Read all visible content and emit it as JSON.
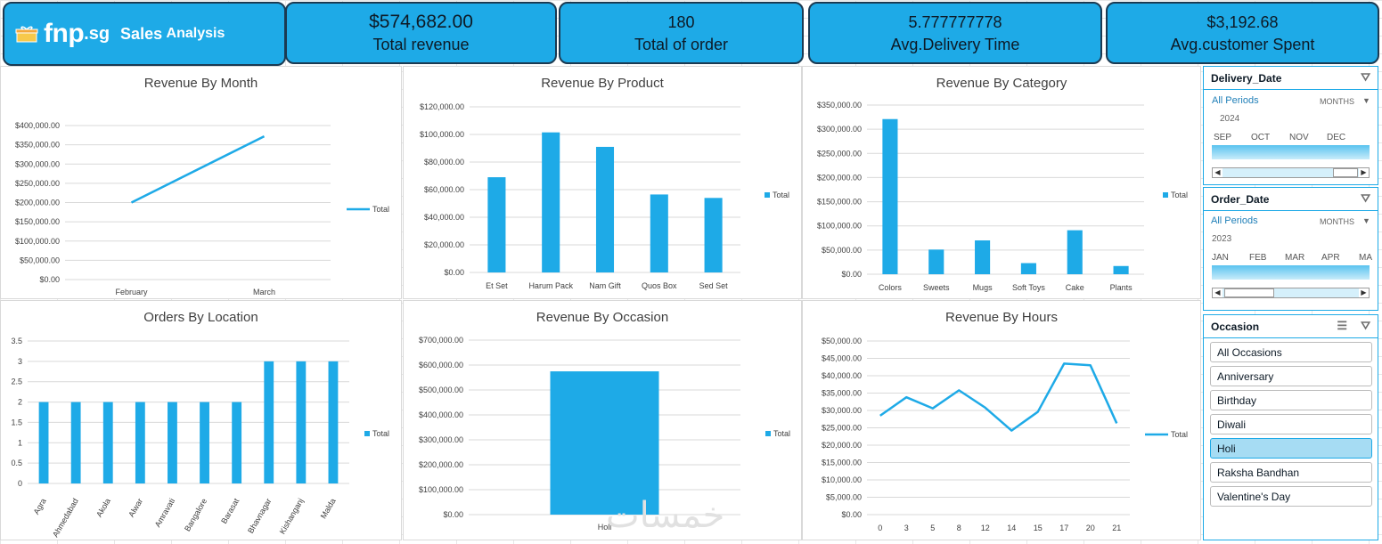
{
  "header": {
    "brand": "fnp",
    "brand_suffix": ".sg",
    "title_part1": "Sales",
    "title_part2": "Analysis",
    "logo_icon": "gift-box-icon"
  },
  "kpis": [
    {
      "value": "$574,682.00",
      "label": "Total revenue"
    },
    {
      "value": "180",
      "label": "Total of order"
    },
    {
      "value": "5.777777778",
      "label": "Avg.Delivery Time"
    },
    {
      "value": "$3,192.68",
      "label": "Avg.customer Spent"
    }
  ],
  "colors": {
    "accent": "#1eaae7",
    "border": "#1b3a52",
    "bar": "#1eaae7",
    "selected": "#a6dcf3"
  },
  "chart_data": [
    {
      "id": "month",
      "type": "line",
      "title": "Revenue By Month",
      "categories": [
        "February",
        "March"
      ],
      "values": [
        200000,
        372000
      ],
      "ylim": [
        0,
        400000
      ],
      "yticks": [
        "$0.00",
        "$50,000.00",
        "$100,000.00",
        "$150,000.00",
        "$200,000.00",
        "$250,000.00",
        "$300,000.00",
        "$350,000.00",
        "$400,000.00"
      ],
      "legend": "Total",
      "legend_position": "right"
    },
    {
      "id": "product",
      "type": "bar",
      "title": "Revenue By Product",
      "categories": [
        "Et Set",
        "Harum Pack",
        "Nam Gift",
        "Quos Box",
        "Sed Set"
      ],
      "values": [
        69000,
        101500,
        91000,
        56500,
        54000
      ],
      "ylim": [
        0,
        120000
      ],
      "yticks": [
        "$0.00",
        "$20,000.00",
        "$40,000.00",
        "$60,000.00",
        "$80,000.00",
        "$100,000.00",
        "$120,000.00"
      ],
      "legend": "Total",
      "legend_position": "right"
    },
    {
      "id": "category",
      "type": "bar",
      "title": "Revenue By Category",
      "categories": [
        "Colors",
        "Sweets",
        "Mugs",
        "Soft Toys",
        "Cake",
        "Plants"
      ],
      "values": [
        321000,
        51000,
        70000,
        23000,
        91000,
        17000
      ],
      "ylim": [
        0,
        350000
      ],
      "yticks": [
        "$0.00",
        "$50,000.00",
        "$100,000.00",
        "$150,000.00",
        "$200,000.00",
        "$250,000.00",
        "$300,000.00",
        "$350,000.00"
      ],
      "legend": "Total",
      "legend_position": "right"
    },
    {
      "id": "location",
      "type": "bar",
      "title": "Orders By Location",
      "categories": [
        "Agra",
        "Ahmedabad",
        "Akola",
        "Alwar",
        "Amravati",
        "Bangalore",
        "Barasat",
        "Bhavnagar",
        "Kishanganj",
        "Malda"
      ],
      "values": [
        2,
        2,
        2,
        2,
        2,
        2,
        2,
        3,
        3,
        3
      ],
      "ylim": [
        0,
        3.5
      ],
      "yticks": [
        "0",
        "0.5",
        "1",
        "1.5",
        "2",
        "2.5",
        "3",
        "3.5"
      ],
      "legend": "Total",
      "legend_position": "right"
    },
    {
      "id": "occasion",
      "type": "bar",
      "title": "Revenue By Occasion",
      "categories": [
        "Holi"
      ],
      "values": [
        574682
      ],
      "ylim": [
        0,
        700000
      ],
      "yticks": [
        "$0.00",
        "$100,000.00",
        "$200,000.00",
        "$300,000.00",
        "$400,000.00",
        "$500,000.00",
        "$600,000.00",
        "$700,000.00"
      ],
      "legend": "Total",
      "legend_position": "right"
    },
    {
      "id": "hours",
      "type": "line",
      "title": "Revenue By Hours",
      "categories": [
        "0",
        "3",
        "5",
        "8",
        "12",
        "14",
        "15",
        "17",
        "20",
        "21"
      ],
      "values": [
        28500,
        33800,
        30600,
        35800,
        30800,
        24200,
        29600,
        43500,
        43000,
        26300
      ],
      "ylim": [
        0,
        50000
      ],
      "yticks": [
        "$0.00",
        "$5,000.00",
        "$10,000.00",
        "$15,000.00",
        "$20,000.00",
        "$25,000.00",
        "$30,000.00",
        "$35,000.00",
        "$40,000.00",
        "$45,000.00",
        "$50,000.00"
      ],
      "legend": "Total",
      "legend_position": "right"
    }
  ],
  "slicers": {
    "delivery": {
      "title": "Delivery_Date",
      "periods": "All Periods",
      "unit": "MONTHS",
      "year": "2024",
      "months": [
        "SEP",
        "OCT",
        "NOV",
        "DEC"
      ]
    },
    "order": {
      "title": "Order_Date",
      "periods": "All Periods",
      "unit": "MONTHS",
      "year": "2023",
      "months": [
        "JAN",
        "FEB",
        "MAR",
        "APR",
        "MA"
      ]
    },
    "occasion": {
      "title": "Occasion",
      "items": [
        "All Occasions",
        "Anniversary",
        "Birthday",
        "Diwali",
        "Holi",
        "Raksha Bandhan",
        "Valentine's Day"
      ],
      "selected": "Holi"
    }
  },
  "watermark": "خمسات"
}
